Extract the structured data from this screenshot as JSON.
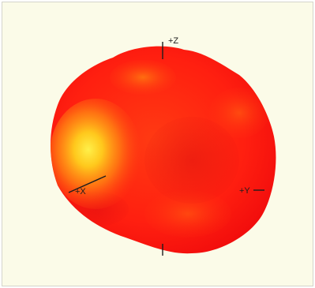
{
  "axes": {
    "z_label": "+Z",
    "x_label": "+X",
    "y_label": "+Y"
  },
  "colors": {
    "background": "#fbfbe8",
    "pattern_base": "#ff1a10",
    "pattern_highlight": "#fff04a",
    "axis_line": "#1e1e1e"
  }
}
